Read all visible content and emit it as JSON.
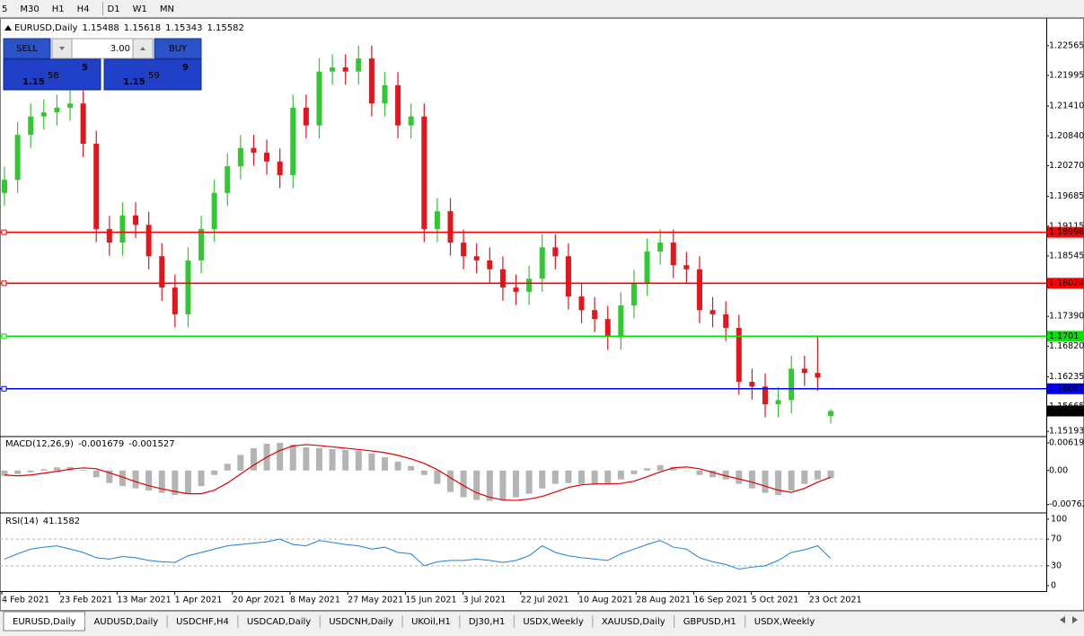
{
  "toolbar": [
    "5",
    "M30",
    "H1",
    "H4",
    "D1",
    "W1",
    "MN"
  ],
  "trade_panel": {
    "sell": "SELL",
    "buy": "BUY",
    "lots": "3.00",
    "bid": {
      "big_figure": "1.15",
      "pips": "58",
      "fraction": "5"
    },
    "ask": {
      "big_figure": "1.15",
      "pips": "59",
      "fraction": "9"
    }
  },
  "chart_data": [
    {
      "type": "candlestick",
      "title": "EURUSD,Daily",
      "up_color": "#33c733",
      "down_color": "#e3161d",
      "candles": [
        [
          1.1975,
          1.2025,
          1.195,
          1.2
        ],
        [
          1.2,
          1.2111,
          1.1975,
          1.2086
        ],
        [
          1.2086,
          1.2146,
          1.2061,
          1.2121
        ],
        [
          1.2121,
          1.2154,
          1.2096,
          1.2129
        ],
        [
          1.2129,
          1.2163,
          1.2104,
          1.2138
        ],
        [
          1.2138,
          1.2171,
          1.2113,
          1.2146
        ],
        [
          1.2146,
          1.2171,
          1.2044,
          1.2069
        ],
        [
          1.2069,
          1.2094,
          1.1881,
          1.1906
        ],
        [
          1.1906,
          1.1931,
          1.1855,
          1.188
        ],
        [
          1.188,
          1.1957,
          1.1855,
          1.1932
        ],
        [
          1.1932,
          1.1957,
          1.1889,
          1.1914
        ],
        [
          1.1914,
          1.1939,
          1.1829,
          1.1854
        ],
        [
          1.1854,
          1.1879,
          1.1769,
          1.1794
        ],
        [
          1.1794,
          1.1819,
          1.1718,
          1.1743
        ],
        [
          1.1743,
          1.1871,
          1.1718,
          1.1846
        ],
        [
          1.1846,
          1.1931,
          1.1821,
          1.1906
        ],
        [
          1.1906,
          1.2,
          1.1881,
          1.1975
        ],
        [
          1.1975,
          1.2051,
          1.195,
          1.2026
        ],
        [
          1.2026,
          1.2086,
          1.2001,
          1.2061
        ],
        [
          1.2061,
          1.2086,
          1.2027,
          1.2052
        ],
        [
          1.2052,
          1.2077,
          1.201,
          1.2035
        ],
        [
          1.2035,
          1.206,
          1.1984,
          1.2009
        ],
        [
          1.2009,
          1.2163,
          1.1984,
          1.2138
        ],
        [
          1.2138,
          1.2163,
          1.2079,
          1.2104
        ],
        [
          1.2104,
          1.2232,
          1.2079,
          1.2207
        ],
        [
          1.2207,
          1.224,
          1.2182,
          1.2215
        ],
        [
          1.2215,
          1.224,
          1.2182,
          1.2207
        ],
        [
          1.2207,
          1.2257,
          1.2182,
          1.2232
        ],
        [
          1.2232,
          1.2257,
          1.2121,
          1.2146
        ],
        [
          1.2146,
          1.2206,
          1.2121,
          1.2181
        ],
        [
          1.2181,
          1.2206,
          1.2079,
          1.2104
        ],
        [
          1.2104,
          1.2146,
          1.2079,
          1.2121
        ],
        [
          1.2121,
          1.2146,
          1.1881,
          1.1906
        ],
        [
          1.1906,
          1.1965,
          1.1881,
          1.194
        ],
        [
          1.194,
          1.1965,
          1.1855,
          1.188
        ],
        [
          1.188,
          1.1905,
          1.1829,
          1.1854
        ],
        [
          1.1854,
          1.1879,
          1.1821,
          1.1846
        ],
        [
          1.1846,
          1.1871,
          1.1804,
          1.1829
        ],
        [
          1.1829,
          1.1854,
          1.1769,
          1.1794
        ],
        [
          1.1794,
          1.1819,
          1.1761,
          1.1786
        ],
        [
          1.1786,
          1.1836,
          1.1761,
          1.1811
        ],
        [
          1.1811,
          1.1896,
          1.1786,
          1.1871
        ],
        [
          1.1871,
          1.1896,
          1.1829,
          1.1854
        ],
        [
          1.1854,
          1.1879,
          1.1752,
          1.1777
        ],
        [
          1.1777,
          1.1802,
          1.1726,
          1.1751
        ],
        [
          1.1751,
          1.1776,
          1.1709,
          1.1734
        ],
        [
          1.1734,
          1.1759,
          1.1675,
          1.17
        ],
        [
          1.17,
          1.1785,
          1.1675,
          1.176
        ],
        [
          1.176,
          1.1828,
          1.1735,
          1.1803
        ],
        [
          1.1803,
          1.1888,
          1.1778,
          1.1863
        ],
        [
          1.1863,
          1.1905,
          1.1838,
          1.188
        ],
        [
          1.188,
          1.1905,
          1.1812,
          1.1837
        ],
        [
          1.1837,
          1.1862,
          1.1804,
          1.1829
        ],
        [
          1.1829,
          1.1854,
          1.1726,
          1.1751
        ],
        [
          1.1751,
          1.1776,
          1.1718,
          1.1743
        ],
        [
          1.1743,
          1.1768,
          1.1692,
          1.1717
        ],
        [
          1.1717,
          1.1742,
          1.1589,
          1.1614
        ],
        [
          1.1614,
          1.1639,
          1.158,
          1.1605
        ],
        [
          1.1605,
          1.163,
          1.1546,
          1.1571
        ],
        [
          1.1571,
          1.1604,
          1.1546,
          1.1579
        ],
        [
          1.1579,
          1.1664,
          1.1554,
          1.1639
        ],
        [
          1.1639,
          1.1664,
          1.1606,
          1.1631
        ],
        [
          1.1631,
          1.17,
          1.1597,
          1.1622
        ],
        [
          1.15488,
          1.15618,
          1.15343,
          1.15582
        ]
      ],
      "ylim": [
        1.1511,
        1.2306
      ],
      "yticks": [
        1.22565,
        1.21995,
        {
          "value": 1.2141,
          "label": "1.21410"
        },
        {
          "value": 1.2084,
          "label": "1.20840"
        },
        {
          "value": 1.2027,
          "label": "1.20270"
        },
        1.19685,
        1.19115,
        1.18545,
        {
          "value": 1.1739,
          "label": "1.17390"
        },
        {
          "value": 1.1682,
          "label": "1.16820"
        },
        1.16235,
        1.15665,
        1.15193
      ],
      "levels": [
        {
          "value": 1.18998,
          "color": "#ff0000"
        },
        {
          "value": 1.18024,
          "color": "#ff0000"
        },
        {
          "value": 1.1701,
          "color": "#00e600"
        },
        {
          "value": 1.16007,
          "color": "#0000ff"
        }
      ],
      "date_labels": [
        "4 Feb 2021",
        "23 Feb 2021",
        "13 Mar 2021",
        "1 Apr 2021",
        "20 Apr 2021",
        "8 May 2021",
        "27 May 2021",
        "15 Jun 2021",
        "3 Jul 2021",
        "22 Jul 2021",
        "10 Aug 2021",
        "28 Aug 2021",
        "16 Sep 2021",
        "5 Oct 2021",
        "23 Oct 2021"
      ]
    },
    {
      "type": "macd",
      "title": "MACD(12,26,9)",
      "histogram": {
        "color": "#b4b4b4",
        "values": [
          -0.0012,
          -0.0008,
          -0.0004,
          0.0003,
          0.0007,
          0.0008,
          0.0002,
          -0.0015,
          -0.0028,
          -0.0035,
          -0.004,
          -0.0045,
          -0.005,
          -0.0055,
          -0.0052,
          -0.0035,
          -0.001,
          0.0015,
          0.0035,
          0.005,
          0.006,
          0.0062,
          0.0058,
          0.0052,
          0.005,
          0.0048,
          0.0046,
          0.0044,
          0.0038,
          0.003,
          0.002,
          0.001,
          -0.001,
          -0.003,
          -0.0048,
          -0.006,
          -0.0066,
          -0.0068,
          -0.0066,
          -0.006,
          -0.0052,
          -0.004,
          -0.003,
          -0.0028,
          -0.003,
          -0.0032,
          -0.003,
          -0.002,
          -0.0008,
          0.0005,
          0.0012,
          0.0008,
          0,
          -0.001,
          -0.0015,
          -0.002,
          -0.003,
          -0.004,
          -0.005,
          -0.0055,
          -0.0045,
          -0.003,
          -0.002,
          -0.001679
        ]
      },
      "signal": {
        "color": "#e00000",
        "values": [
          -0.001,
          -0.0012,
          -0.001,
          -0.0006,
          -0.0002,
          0.0003,
          0.0006,
          0.0004,
          -0.0005,
          -0.0015,
          -0.0025,
          -0.0034,
          -0.0041,
          -0.0047,
          -0.0052,
          -0.0052,
          -0.0044,
          -0.0028,
          -0.0008,
          0.0012,
          0.003,
          0.0045,
          0.0055,
          0.0058,
          0.0056,
          0.0053,
          0.005,
          0.0047,
          0.0044,
          0.004,
          0.0034,
          0.0026,
          0.0016,
          0.0002,
          -0.0016,
          -0.0034,
          -0.005,
          -0.006,
          -0.0066,
          -0.0067,
          -0.0064,
          -0.0058,
          -0.0048,
          -0.0038,
          -0.0032,
          -0.003,
          -0.003,
          -0.0029,
          -0.0024,
          -0.0014,
          -0.0003,
          0.0006,
          0.0008,
          0.0004,
          -0.0004,
          -0.0012,
          -0.0019,
          -0.0026,
          -0.0035,
          -0.0044,
          -0.0049,
          -0.004,
          -0.0026,
          -0.001527
        ]
      },
      "ylim": [
        -0.0093,
        0.0074
      ],
      "yticks": [
        0.006193,
        {
          "value": 0,
          "label": "0.00"
        },
        -0.007621
      ]
    },
    {
      "type": "line",
      "title": "RSI(14)",
      "color": "#1e7fd8",
      "values": [
        40,
        48,
        55,
        58,
        60,
        55,
        50,
        42,
        40,
        44,
        42,
        38,
        36,
        35,
        45,
        50,
        55,
        60,
        62,
        64,
        66,
        70,
        62,
        60,
        68,
        65,
        62,
        60,
        55,
        58,
        50,
        48,
        30,
        36,
        38,
        38,
        40,
        38,
        35,
        38,
        45,
        60,
        50,
        45,
        42,
        40,
        38,
        48,
        55,
        62,
        68,
        58,
        55,
        42,
        36,
        32,
        25,
        28,
        30,
        38,
        50,
        54,
        60,
        41.1582
      ],
      "ylim": [
        -8,
        108
      ],
      "yticks": [
        100,
        70,
        30,
        0
      ]
    }
  ],
  "tabs": [
    "EURUSD,Daily",
    "AUDUSD,Daily",
    "USDCHF,H4",
    "USDCAD,Daily",
    "USDCNH,Daily",
    "UKOil,H1",
    "DJ30,H1",
    "USDX,Weekly",
    "XAUUSD,Daily",
    "GBPUSD,H1",
    "USDX,Weekly"
  ]
}
